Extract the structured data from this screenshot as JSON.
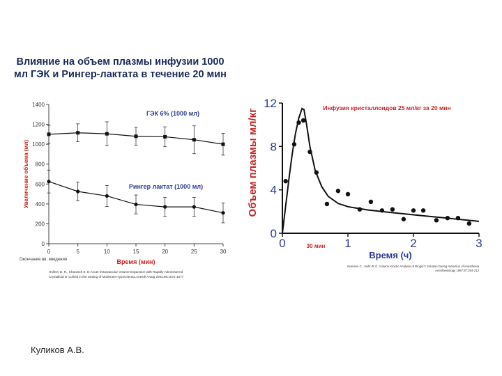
{
  "slide": {
    "title": "Влияние на объем плазмы инфузии 1000 мл ГЭК и Рингер-лактата в течение 20 мин",
    "author": "Куликов А.В."
  },
  "colors": {
    "red": "#cc2222",
    "blue": "#2a3a9a",
    "navy": "#1a2a5a",
    "dark": "#111111"
  },
  "chart_data": [
    {
      "type": "line",
      "ylabel": "Увеличение объема (мл)",
      "xlabel": "Время (мин)",
      "x_note": "Окончание вв. введения",
      "citation": [
        "Hollner D. R., Kharasch E. D.Acute Intravascular Volume Expansion with Rapidly Administered",
        "Crystalloid or Colloid in the Setting of Moderate Hypovolemia.Anesth Analg 2003;96:1572-1577"
      ],
      "x": [
        0,
        5,
        10,
        15,
        20,
        25,
        30
      ],
      "xticks": [
        0,
        5,
        10,
        15,
        20,
        25,
        30
      ],
      "yticks": [
        0,
        200,
        400,
        600,
        800,
        1000,
        1200,
        1400
      ],
      "xlim": [
        0,
        30
      ],
      "ylim": [
        0,
        1400
      ],
      "series": [
        {
          "name": "ГЭК 6% (1000 мл)",
          "values": [
            1100,
            1115,
            1105,
            1080,
            1075,
            1045,
            1000
          ],
          "err": [
            90,
            90,
            120,
            90,
            100,
            140,
            110
          ]
        },
        {
          "name": "Рингер лактат (1000 мл)",
          "values": [
            625,
            525,
            480,
            395,
            370,
            370,
            310
          ],
          "err": [
            115,
            95,
            105,
            95,
            95,
            95,
            100
          ]
        }
      ]
    },
    {
      "type": "scatter",
      "title": "Инфузия кристаллоидов 25 мл/кг за 20 мин",
      "ylabel": "Объем плазмы мл/кг",
      "xlabel": "Время (ч)",
      "annotation": "30 мин",
      "citation": [
        "Svensen C., Hahn R.G. Volume Kinetic Analysis of Ringer's Solution During Induction of Anesthesia",
        "Anesthesiology 1997;87:204-212"
      ],
      "xticks": [
        0,
        1,
        2,
        3
      ],
      "yticks": [
        0,
        4,
        8,
        12
      ],
      "xlim": [
        0,
        3
      ],
      "ylim": [
        0,
        12
      ],
      "points": {
        "x": [
          0.05,
          0.18,
          0.25,
          0.32,
          0.42,
          0.52,
          0.68,
          0.85,
          1.0,
          1.18,
          1.35,
          1.52,
          1.68,
          1.85,
          2.0,
          2.15,
          2.35,
          2.52,
          2.68,
          2.85
        ],
        "y": [
          4.8,
          8.2,
          10.2,
          10.4,
          7.5,
          5.6,
          2.7,
          3.9,
          3.6,
          2.2,
          2.9,
          2.1,
          2.2,
          1.3,
          2.1,
          2.1,
          1.2,
          1.4,
          1.4,
          0.9
        ]
      },
      "curve": {
        "x": [
          0,
          0.05,
          0.1,
          0.15,
          0.2,
          0.25,
          0.3,
          0.33,
          0.37,
          0.42,
          0.5,
          0.6,
          0.7,
          0.85,
          1.0,
          1.3,
          1.6,
          2.0,
          2.5,
          3.0
        ],
        "y": [
          0,
          2.5,
          5.0,
          7.3,
          9.2,
          10.6,
          11.5,
          11.4,
          10.0,
          8.0,
          5.8,
          4.3,
          3.4,
          2.75,
          2.45,
          2.15,
          1.95,
          1.7,
          1.4,
          1.1
        ]
      }
    }
  ]
}
